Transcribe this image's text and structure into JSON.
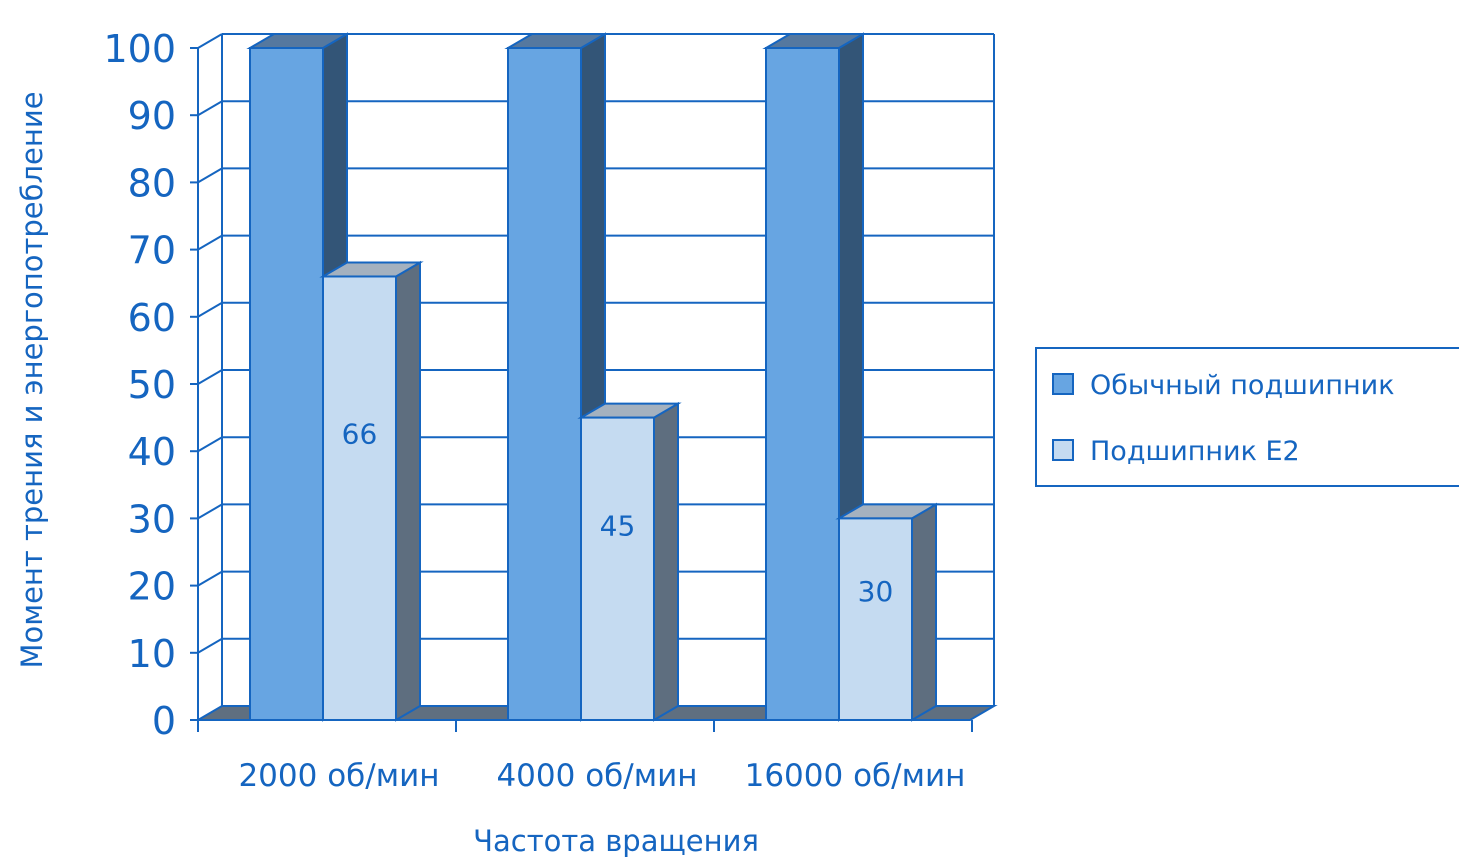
{
  "chart_data": {
    "type": "bar",
    "categories": [
      "2000 об/мин",
      "4000 об/мин",
      "16000 об/мин"
    ],
    "series": [
      {
        "name": "Обычный подшипник",
        "values": [
          100,
          100,
          100
        ],
        "color": "#67A5E2",
        "side_color": "#335577",
        "top_color": "#55789F"
      },
      {
        "name": "Подшипник E2",
        "values": [
          66,
          45,
          30
        ],
        "color": "#C5DBF1",
        "side_color": "#5E6E7F",
        "top_color": "#A4B1BF"
      }
    ],
    "data_labels": [
      "",
      "66|45|30"
    ],
    "xlabel": "Частота вращения",
    "ylabel": "Момент трения и энергопотребление",
    "ylim": [
      0,
      100
    ],
    "yticks": [
      "0",
      "10",
      "20",
      "30",
      "40",
      "50",
      "60",
      "70",
      "80",
      "90",
      "100"
    ],
    "grid": true,
    "three_d": true,
    "legend_position": "right",
    "colors": {
      "text": "#1565C0",
      "axis": "#1565C0",
      "floor": "#5F6F80"
    }
  }
}
